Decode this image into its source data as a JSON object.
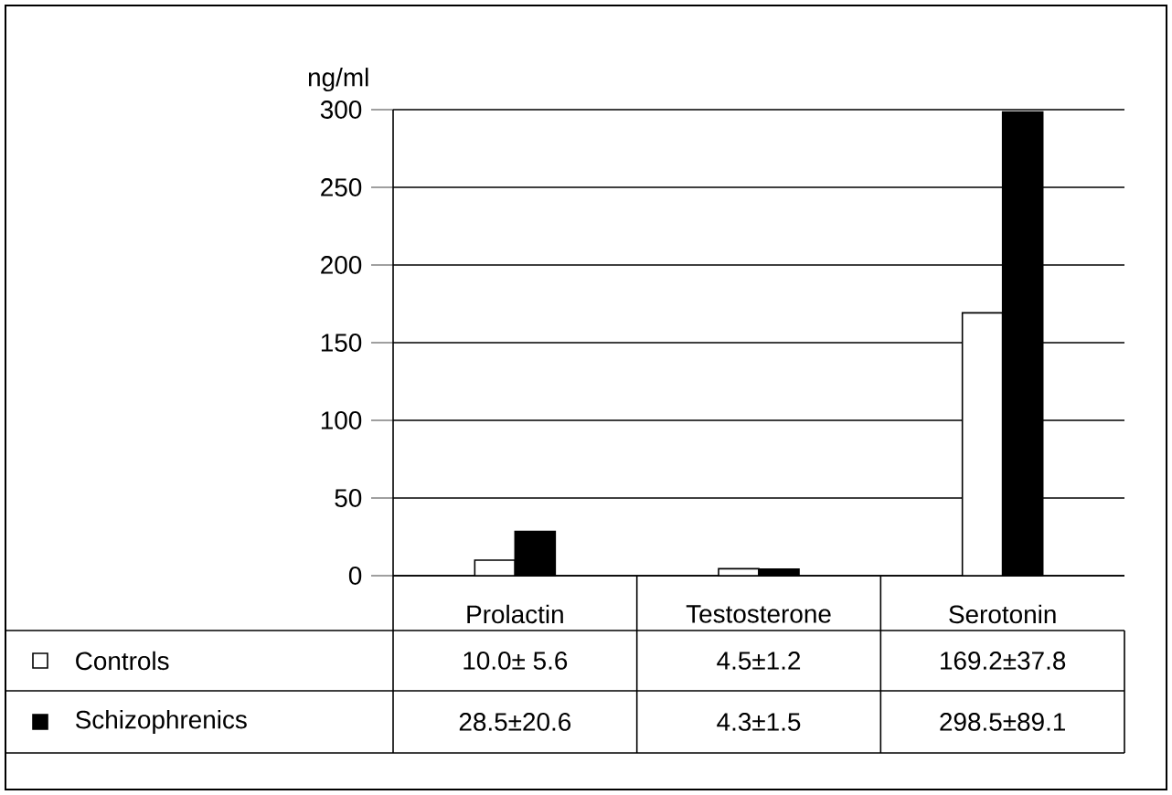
{
  "chart_data": {
    "type": "bar",
    "ylabel": "ng/ml",
    "categories": [
      "Prolactin",
      "Testosterone",
      "Serotonin"
    ],
    "series": [
      {
        "name": "Controls",
        "color": "#ffffff",
        "values": [
          10.0,
          4.5,
          169.2
        ],
        "value_labels": [
          "10.0± 5.6",
          "4.5±1.2",
          "169.2±37.8"
        ]
      },
      {
        "name": "Schizophrenics",
        "color": "#000000",
        "values": [
          28.5,
          4.3,
          298.5
        ],
        "value_labels": [
          "28.5±20.6",
          "4.3±1.5",
          "298.5±89.1"
        ]
      }
    ],
    "ylim": [
      0,
      300
    ],
    "yticks": [
      0,
      50,
      100,
      150,
      200,
      250,
      300
    ],
    "grid": "y",
    "legend": "bottom left"
  }
}
